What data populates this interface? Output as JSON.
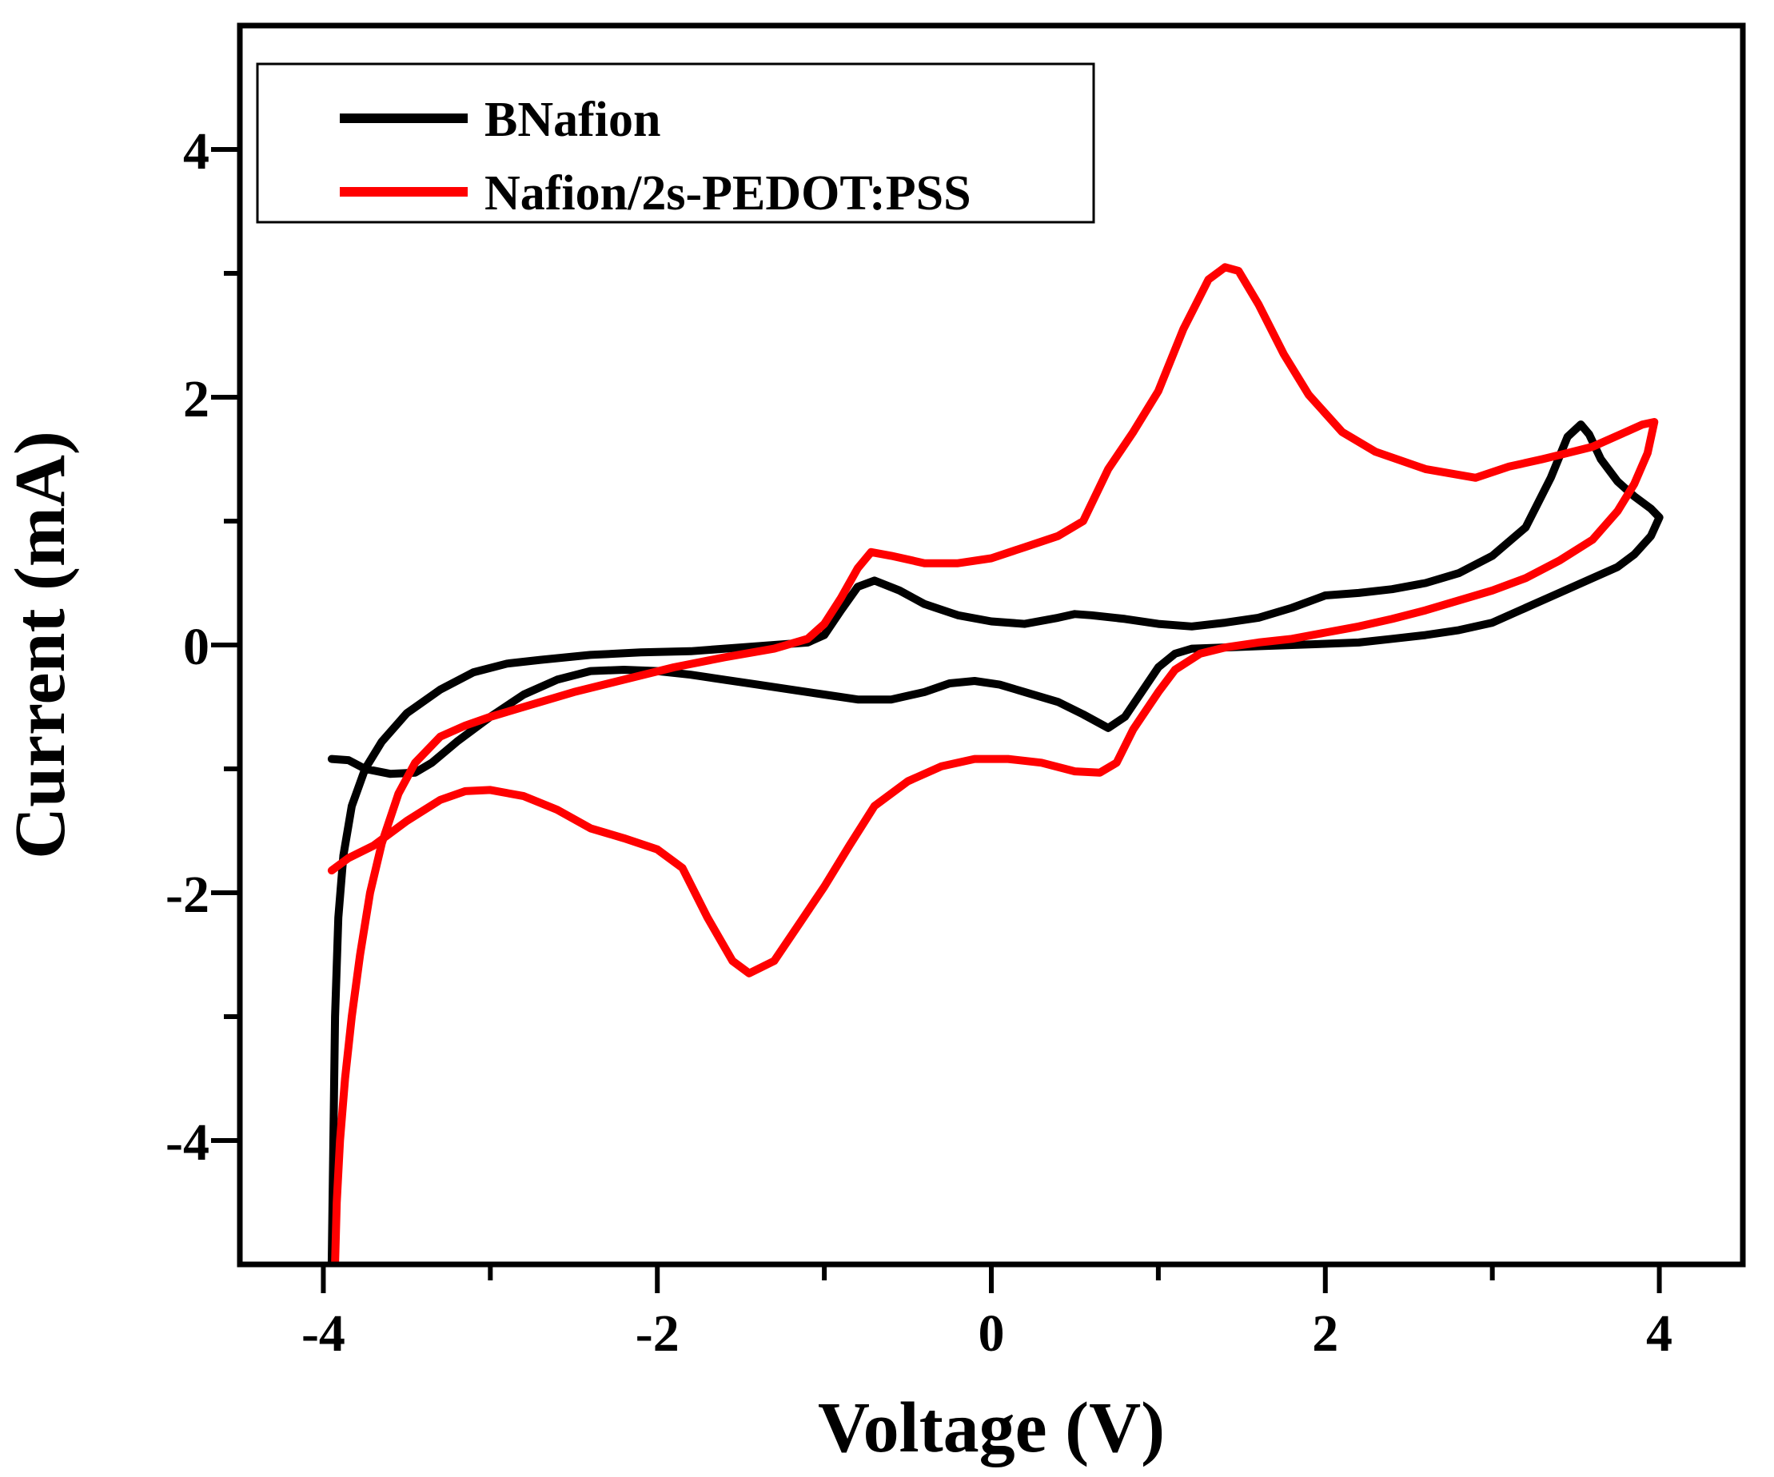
{
  "chart_data": {
    "type": "line",
    "title": "",
    "xlabel": "Voltage (V)",
    "ylabel": "Current (mA)",
    "xlim": [
      -4.5,
      4.5
    ],
    "ylim": [
      -5,
      5
    ],
    "xticks": [
      -4,
      -2,
      0,
      2,
      4
    ],
    "xtick_labels": [
      "-4",
      "-2",
      "0",
      "2",
      "4"
    ],
    "yticks": [
      -4,
      -2,
      0,
      2,
      4
    ],
    "ytick_labels": [
      "-4",
      "-2",
      "0",
      "2",
      "4"
    ],
    "grid": false,
    "legend_position": "top-left",
    "series": [
      {
        "name": "BNafion",
        "color": "#000000",
        "points": [
          [
            -3.95,
            -0.92
          ],
          [
            -3.85,
            -0.93
          ],
          [
            -3.75,
            -1.0
          ],
          [
            -3.6,
            -1.04
          ],
          [
            -3.45,
            -1.03
          ],
          [
            -3.35,
            -0.95
          ],
          [
            -3.2,
            -0.78
          ],
          [
            -3.0,
            -0.58
          ],
          [
            -2.8,
            -0.4
          ],
          [
            -2.6,
            -0.28
          ],
          [
            -2.4,
            -0.21
          ],
          [
            -2.2,
            -0.2
          ],
          [
            -2.0,
            -0.21
          ],
          [
            -1.8,
            -0.24
          ],
          [
            -1.6,
            -0.28
          ],
          [
            -1.4,
            -0.32
          ],
          [
            -1.2,
            -0.36
          ],
          [
            -1.0,
            -0.4
          ],
          [
            -0.8,
            -0.44
          ],
          [
            -0.6,
            -0.44
          ],
          [
            -0.4,
            -0.38
          ],
          [
            -0.25,
            -0.31
          ],
          [
            -0.1,
            -0.29
          ],
          [
            0.05,
            -0.32
          ],
          [
            0.2,
            -0.38
          ],
          [
            0.4,
            -0.46
          ],
          [
            0.55,
            -0.56
          ],
          [
            0.7,
            -0.67
          ],
          [
            0.8,
            -0.58
          ],
          [
            0.9,
            -0.38
          ],
          [
            1.0,
            -0.18
          ],
          [
            1.1,
            -0.07
          ],
          [
            1.2,
            -0.03
          ],
          [
            1.4,
            -0.02
          ],
          [
            1.6,
            -0.01
          ],
          [
            1.8,
            0.0
          ],
          [
            2.0,
            0.01
          ],
          [
            2.2,
            0.02
          ],
          [
            2.4,
            0.05
          ],
          [
            2.6,
            0.08
          ],
          [
            2.8,
            0.12
          ],
          [
            3.0,
            0.18
          ],
          [
            3.2,
            0.3
          ],
          [
            3.4,
            0.42
          ],
          [
            3.6,
            0.54
          ],
          [
            3.75,
            0.63
          ],
          [
            3.85,
            0.73
          ],
          [
            3.95,
            0.88
          ],
          [
            4.0,
            1.03
          ],
          [
            3.95,
            1.1
          ],
          [
            3.85,
            1.2
          ],
          [
            3.75,
            1.32
          ],
          [
            3.65,
            1.5
          ],
          [
            3.58,
            1.7
          ],
          [
            3.53,
            1.78
          ],
          [
            3.45,
            1.68
          ],
          [
            3.35,
            1.35
          ],
          [
            3.2,
            0.95
          ],
          [
            3.0,
            0.72
          ],
          [
            2.8,
            0.58
          ],
          [
            2.6,
            0.5
          ],
          [
            2.4,
            0.45
          ],
          [
            2.2,
            0.42
          ],
          [
            2.0,
            0.4
          ],
          [
            1.8,
            0.3
          ],
          [
            1.6,
            0.22
          ],
          [
            1.4,
            0.18
          ],
          [
            1.2,
            0.15
          ],
          [
            1.0,
            0.17
          ],
          [
            0.8,
            0.21
          ],
          [
            0.6,
            0.24
          ],
          [
            0.5,
            0.25
          ],
          [
            0.4,
            0.22
          ],
          [
            0.2,
            0.17
          ],
          [
            0.0,
            0.19
          ],
          [
            -0.2,
            0.24
          ],
          [
            -0.4,
            0.33
          ],
          [
            -0.55,
            0.44
          ],
          [
            -0.7,
            0.52
          ],
          [
            -0.8,
            0.47
          ],
          [
            -0.9,
            0.28
          ],
          [
            -1.0,
            0.08
          ],
          [
            -1.1,
            0.02
          ],
          [
            -1.3,
            0.0
          ],
          [
            -1.5,
            -0.02
          ],
          [
            -1.8,
            -0.05
          ],
          [
            -2.1,
            -0.06
          ],
          [
            -2.4,
            -0.08
          ],
          [
            -2.7,
            -0.12
          ],
          [
            -2.9,
            -0.15
          ],
          [
            -3.1,
            -0.22
          ],
          [
            -3.3,
            -0.36
          ],
          [
            -3.5,
            -0.55
          ],
          [
            -3.65,
            -0.78
          ],
          [
            -3.75,
            -1.0
          ],
          [
            -3.83,
            -1.3
          ],
          [
            -3.88,
            -1.7
          ],
          [
            -3.91,
            -2.2
          ],
          [
            -3.93,
            -3.0
          ],
          [
            -3.94,
            -4.0
          ],
          [
            -3.95,
            -5.0
          ]
        ]
      },
      {
        "name": "Nafion/2s-PEDOT:PSS",
        "color": "#ff0000",
        "points": [
          [
            -3.95,
            -1.82
          ],
          [
            -3.85,
            -1.72
          ],
          [
            -3.7,
            -1.62
          ],
          [
            -3.5,
            -1.42
          ],
          [
            -3.3,
            -1.25
          ],
          [
            -3.15,
            -1.18
          ],
          [
            -3.0,
            -1.17
          ],
          [
            -2.8,
            -1.22
          ],
          [
            -2.6,
            -1.33
          ],
          [
            -2.4,
            -1.48
          ],
          [
            -2.2,
            -1.56
          ],
          [
            -2.0,
            -1.65
          ],
          [
            -1.85,
            -1.8
          ],
          [
            -1.7,
            -2.2
          ],
          [
            -1.55,
            -2.55
          ],
          [
            -1.45,
            -2.65
          ],
          [
            -1.3,
            -2.55
          ],
          [
            -1.15,
            -2.25
          ],
          [
            -1.0,
            -1.95
          ],
          [
            -0.85,
            -1.62
          ],
          [
            -0.7,
            -1.3
          ],
          [
            -0.5,
            -1.1
          ],
          [
            -0.3,
            -0.98
          ],
          [
            -0.1,
            -0.92
          ],
          [
            0.1,
            -0.92
          ],
          [
            0.3,
            -0.95
          ],
          [
            0.5,
            -1.02
          ],
          [
            0.65,
            -1.03
          ],
          [
            0.75,
            -0.95
          ],
          [
            0.85,
            -0.68
          ],
          [
            1.0,
            -0.38
          ],
          [
            1.1,
            -0.2
          ],
          [
            1.25,
            -0.07
          ],
          [
            1.4,
            -0.02
          ],
          [
            1.6,
            0.02
          ],
          [
            1.8,
            0.05
          ],
          [
            2.0,
            0.1
          ],
          [
            2.2,
            0.15
          ],
          [
            2.4,
            0.21
          ],
          [
            2.6,
            0.28
          ],
          [
            2.8,
            0.36
          ],
          [
            3.0,
            0.44
          ],
          [
            3.2,
            0.54
          ],
          [
            3.4,
            0.68
          ],
          [
            3.6,
            0.85
          ],
          [
            3.75,
            1.08
          ],
          [
            3.85,
            1.3
          ],
          [
            3.93,
            1.55
          ],
          [
            3.97,
            1.8
          ],
          [
            3.9,
            1.78
          ],
          [
            3.8,
            1.72
          ],
          [
            3.6,
            1.6
          ],
          [
            3.45,
            1.55
          ],
          [
            3.3,
            1.5
          ],
          [
            3.1,
            1.44
          ],
          [
            2.9,
            1.35
          ],
          [
            2.6,
            1.42
          ],
          [
            2.3,
            1.56
          ],
          [
            2.1,
            1.72
          ],
          [
            1.9,
            2.02
          ],
          [
            1.75,
            2.35
          ],
          [
            1.6,
            2.75
          ],
          [
            1.48,
            3.02
          ],
          [
            1.4,
            3.05
          ],
          [
            1.3,
            2.95
          ],
          [
            1.15,
            2.55
          ],
          [
            1.0,
            2.05
          ],
          [
            0.85,
            1.72
          ],
          [
            0.7,
            1.42
          ],
          [
            0.55,
            1.0
          ],
          [
            0.4,
            0.88
          ],
          [
            0.2,
            0.79
          ],
          [
            0.0,
            0.7
          ],
          [
            -0.2,
            0.66
          ],
          [
            -0.4,
            0.66
          ],
          [
            -0.6,
            0.72
          ],
          [
            -0.72,
            0.75
          ],
          [
            -0.8,
            0.62
          ],
          [
            -0.9,
            0.38
          ],
          [
            -1.0,
            0.17
          ],
          [
            -1.1,
            0.05
          ],
          [
            -1.3,
            -0.03
          ],
          [
            -1.6,
            -0.1
          ],
          [
            -1.9,
            -0.18
          ],
          [
            -2.2,
            -0.28
          ],
          [
            -2.5,
            -0.38
          ],
          [
            -2.8,
            -0.5
          ],
          [
            -3.0,
            -0.58
          ],
          [
            -3.15,
            -0.65
          ],
          [
            -3.3,
            -0.74
          ],
          [
            -3.45,
            -0.95
          ],
          [
            -3.55,
            -1.2
          ],
          [
            -3.65,
            -1.6
          ],
          [
            -3.72,
            -2.0
          ],
          [
            -3.78,
            -2.5
          ],
          [
            -3.83,
            -3.0
          ],
          [
            -3.87,
            -3.5
          ],
          [
            -3.9,
            -4.0
          ],
          [
            -3.92,
            -4.5
          ],
          [
            -3.93,
            -5.0
          ]
        ]
      }
    ]
  }
}
